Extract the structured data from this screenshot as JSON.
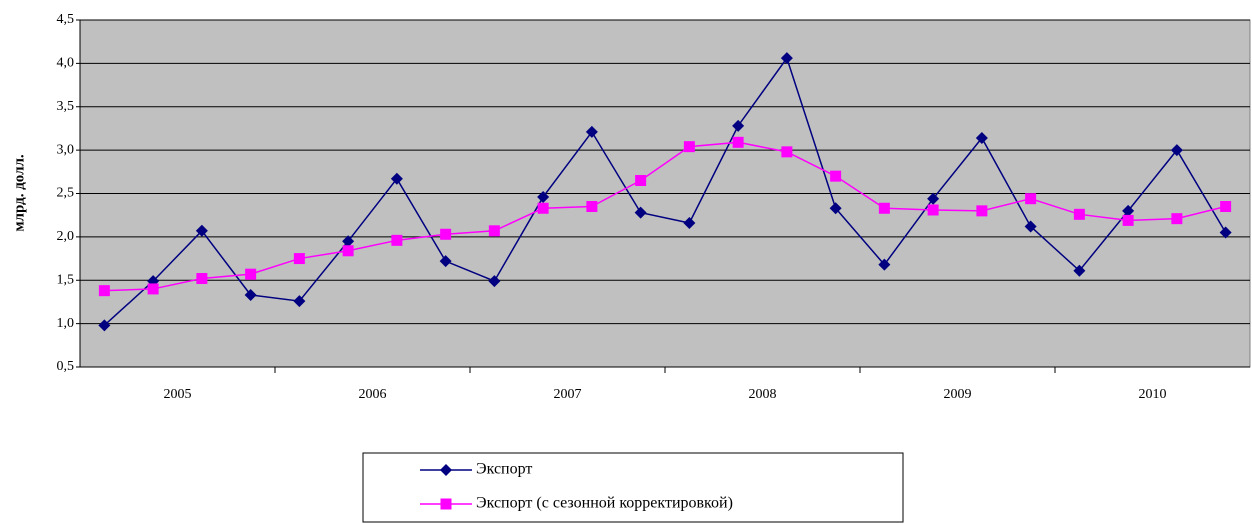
{
  "chart_data": {
    "type": "line",
    "ylabel": "млрд. долл.",
    "categories": [
      null,
      null,
      null,
      null,
      null,
      null,
      null,
      null,
      null,
      null,
      null,
      null,
      null,
      null,
      null,
      null,
      null,
      null,
      null,
      null,
      null,
      null,
      null,
      null
    ],
    "category_groups": [
      "2005",
      "2006",
      "2007",
      "2008",
      "2009",
      "2010"
    ],
    "series": [
      {
        "name": "Экспорт",
        "color": "#000080",
        "marker": "diamond",
        "values": [
          0.98,
          1.49,
          2.07,
          1.33,
          1.26,
          1.95,
          2.67,
          1.72,
          1.49,
          2.46,
          3.21,
          2.28,
          2.16,
          3.28,
          4.06,
          2.33,
          1.68,
          2.44,
          3.14,
          2.12,
          1.61,
          2.3,
          3.0,
          2.05
        ]
      },
      {
        "name": "Экспорт (с сезонной корректировкой)",
        "color": "#ff00ff",
        "marker": "square",
        "values": [
          1.38,
          1.4,
          1.52,
          1.57,
          1.75,
          1.84,
          1.96,
          2.03,
          2.07,
          2.33,
          2.35,
          2.65,
          3.04,
          3.09,
          2.98,
          2.7,
          2.33,
          2.31,
          2.3,
          2.44,
          2.26,
          2.19,
          2.21,
          2.35
        ]
      }
    ],
    "ylim": [
      0.5,
      4.5
    ],
    "yticks": [
      {
        "value": 0.5,
        "label": "0,5"
      },
      {
        "value": 1.0,
        "label": "1,0"
      },
      {
        "value": 1.5,
        "label": "1,5"
      },
      {
        "value": 2.0,
        "label": "2,0"
      },
      {
        "value": 2.5,
        "label": "2,5"
      },
      {
        "value": 3.0,
        "label": "3,0"
      },
      {
        "value": 3.5,
        "label": "3,5"
      },
      {
        "value": 4.0,
        "label": "4,0"
      },
      {
        "value": 4.5,
        "label": "4,5"
      }
    ],
    "grid": true,
    "plot_background": "#c0c0c0",
    "legend": "bottom"
  }
}
